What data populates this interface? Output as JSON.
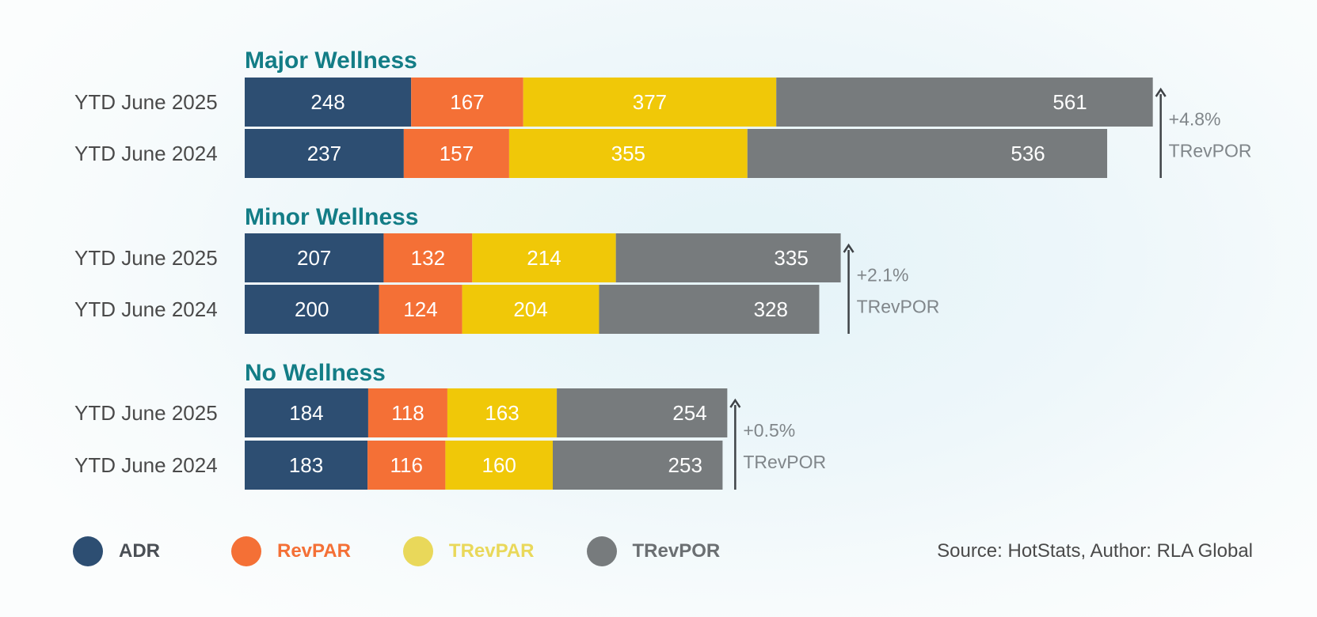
{
  "chart_data": {
    "type": "bar",
    "orientation": "horizontal",
    "stacked": true,
    "groups": [
      {
        "title": "Major Wellness",
        "change": "+4.8%",
        "change_metric": "TRevPOR",
        "rows": [
          {
            "label": "YTD June 2025",
            "values": {
              "ADR": 248,
              "RevPAR": 167,
              "TRevPAR": 377,
              "TRevPOR": 561
            }
          },
          {
            "label": "YTD June 2024",
            "values": {
              "ADR": 237,
              "RevPAR": 157,
              "TRevPAR": 355,
              "TRevPOR": 536
            }
          }
        ]
      },
      {
        "title": "Minor Wellness",
        "change": "+2.1%",
        "change_metric": "TRevPOR",
        "rows": [
          {
            "label": "YTD June 2025",
            "values": {
              "ADR": 207,
              "RevPAR": 132,
              "TRevPAR": 214,
              "TRevPOR": 335
            }
          },
          {
            "label": "YTD June 2024",
            "values": {
              "ADR": 200,
              "RevPAR": 124,
              "TRevPAR": 204,
              "TRevPOR": 328
            }
          }
        ]
      },
      {
        "title": "No Wellness",
        "change": "+0.5%",
        "change_metric": "TRevPOR",
        "rows": [
          {
            "label": "YTD June 2025",
            "values": {
              "ADR": 184,
              "RevPAR": 118,
              "TRevPAR": 163,
              "TRevPOR": 254
            }
          },
          {
            "label": "YTD June 2024",
            "values": {
              "ADR": 183,
              "RevPAR": 116,
              "TRevPAR": 160,
              "TRevPOR": 253
            }
          }
        ]
      }
    ],
    "series": [
      {
        "name": "ADR",
        "color": "#2d4e72"
      },
      {
        "name": "RevPAR",
        "color": "#f47036"
      },
      {
        "name": "TRevPAR",
        "color": "#f0c808"
      },
      {
        "name": "TRevPOR",
        "color": "#777b7d"
      }
    ],
    "legend": [
      {
        "name": "ADR",
        "dot_color": "#2d4e72",
        "text_color": "#4a4f55"
      },
      {
        "name": "RevPAR",
        "dot_color": "#f47036",
        "text_color": "#f47036"
      },
      {
        "name": "TRevPAR",
        "dot_color": "#e9d85a",
        "text_color": "#e9d85a"
      },
      {
        "name": "TRevPOR",
        "dot_color": "#777b7d",
        "text_color": "#6b6f72"
      }
    ],
    "source": "Source: HotStats, Author: RLA Global"
  }
}
